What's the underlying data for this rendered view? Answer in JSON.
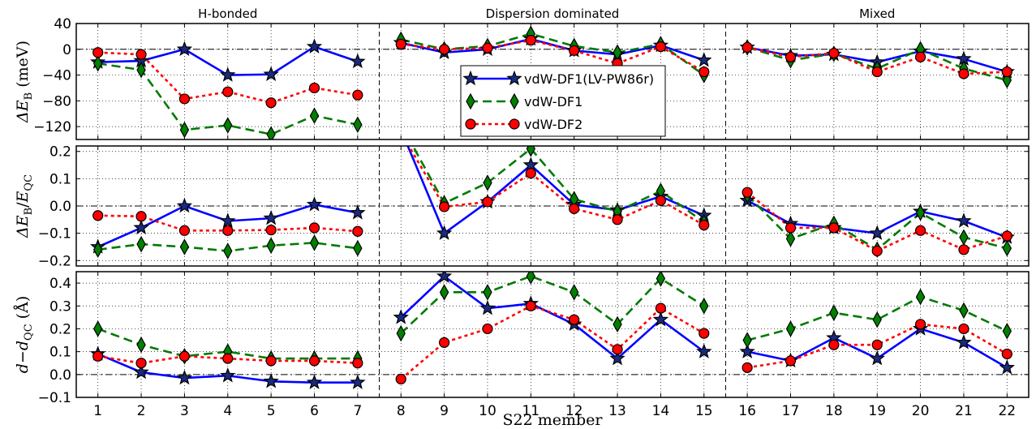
{
  "chart_data": {
    "type": "line",
    "xlabel": "S22 member",
    "x": [
      1,
      2,
      3,
      4,
      5,
      6,
      7,
      8,
      9,
      10,
      11,
      12,
      13,
      14,
      15,
      16,
      17,
      18,
      19,
      20,
      21,
      22
    ],
    "x_ticks": [
      "1",
      "2",
      "3",
      "4",
      "5",
      "6",
      "7",
      "8",
      "9",
      "10",
      "11",
      "12",
      "13",
      "14",
      "15",
      "16",
      "17",
      "18",
      "19",
      "20",
      "21",
      "22"
    ],
    "groups": [
      {
        "label": "H-bonded"
      },
      {
        "label": "Dispersion dominated"
      },
      {
        "label": "Mixed"
      }
    ],
    "series_style": [
      {
        "name": "vdW-DF1(LV-PW86r)",
        "color": "#0000ff",
        "marker": "star",
        "marker_fill": "#1a2a80",
        "dash": "solid"
      },
      {
        "name": "vdW-DF1",
        "color": "#007a00",
        "marker": "diamond",
        "marker_fill": "#008000",
        "dash": "dashed"
      },
      {
        "name": "vdW-DF2",
        "color": "#ff0000",
        "marker": "circle",
        "marker_fill": "#ff0000",
        "dash": "dotted"
      }
    ],
    "panels": [
      {
        "ylabel_main": "ΔE",
        "ylabel_sub": "B",
        "ylabel_unit": " (meV)",
        "ylim": [
          -140,
          40
        ],
        "yticks": [
          40,
          0,
          -40,
          -80,
          -120
        ],
        "ytick_labels": [
          "40",
          "0",
          "−40",
          "−80",
          "−120"
        ],
        "series": [
          {
            "name": "vdW-DF1(LV-PW86r)",
            "values": [
              -20,
              -18,
              0,
              -40,
              -39,
              4,
              -19,
              10,
              -5,
              0,
              16,
              -2,
              -8,
              6,
              -17,
              3,
              -10,
              -8,
              -20,
              -3,
              -15,
              -35
            ]
          },
          {
            "name": "vdW-DF1",
            "values": [
              -22,
              -32,
              -125,
              -118,
              -132,
              -103,
              -117,
              15,
              0,
              5,
              24,
              5,
              -5,
              8,
              -40,
              3,
              -17,
              -7,
              -30,
              0,
              -30,
              -48
            ]
          },
          {
            "name": "vdW-DF2",
            "values": [
              -5,
              -8,
              -77,
              -66,
              -83,
              -60,
              -71,
              8,
              0,
              2,
              14,
              -2,
              -22,
              4,
              -35,
              3,
              -12,
              -6,
              -35,
              -12,
              -38,
              -35
            ]
          }
        ]
      },
      {
        "ylabel_main": "ΔE",
        "ylabel_sub": "B",
        "ylabel_den": "E",
        "ylabel_den_sub": "QC",
        "ylim": [
          -0.22,
          0.22
        ],
        "yticks": [
          0.2,
          0.1,
          0.0,
          -0.1,
          -0.2
        ],
        "ytick_labels": [
          "0.2",
          "0.1",
          "0.0",
          "−0.1",
          "−0.2"
        ],
        "series": [
          {
            "name": "vdW-DF1(LV-PW86r)",
            "values": [
              -0.15,
              -0.08,
              0.0,
              -0.055,
              -0.045,
              0.005,
              -0.025,
              0.28,
              -0.1,
              0.015,
              0.15,
              0.005,
              -0.015,
              0.035,
              -0.035,
              0.02,
              -0.065,
              -0.08,
              -0.1,
              -0.02,
              -0.055,
              -0.115
            ]
          },
          {
            "name": "vdW-DF1",
            "values": [
              -0.16,
              -0.14,
              -0.15,
              -0.165,
              -0.145,
              -0.135,
              -0.155,
              0.3,
              0.01,
              0.085,
              0.21,
              0.025,
              -0.02,
              0.055,
              -0.06,
              0.04,
              -0.12,
              -0.065,
              -0.16,
              -0.025,
              -0.115,
              -0.155
            ]
          },
          {
            "name": "vdW-DF2",
            "values": [
              -0.035,
              -0.038,
              -0.09,
              -0.09,
              -0.088,
              -0.08,
              -0.093,
              0.27,
              -0.003,
              0.015,
              0.12,
              -0.01,
              -0.05,
              0.02,
              -0.07,
              0.05,
              -0.08,
              -0.08,
              -0.165,
              -0.09,
              -0.16,
              -0.11
            ]
          }
        ]
      },
      {
        "ylabel_main": "d",
        "ylabel_mid": "−",
        "ylabel_sub": "QC",
        "ylabel_unit": " (Å)",
        "ylim": [
          -0.1,
          0.45
        ],
        "yticks": [
          0.4,
          0.3,
          0.2,
          0.1,
          0.0,
          -0.1
        ],
        "ytick_labels": [
          "0.4",
          "0.3",
          "0.2",
          "0.1",
          "0.0",
          "−0.1"
        ],
        "series": [
          {
            "name": "vdW-DF1(LV-PW86r)",
            "values": [
              0.09,
              0.01,
              -0.015,
              -0.005,
              -0.03,
              -0.035,
              -0.035,
              0.25,
              0.43,
              0.29,
              0.31,
              0.22,
              0.07,
              0.24,
              0.1,
              0.1,
              0.06,
              0.16,
              0.07,
              0.2,
              0.14,
              0.03
            ]
          },
          {
            "name": "vdW-DF1",
            "values": [
              0.2,
              0.13,
              0.08,
              0.1,
              0.07,
              0.07,
              0.07,
              0.18,
              0.36,
              0.36,
              0.43,
              0.36,
              0.22,
              0.42,
              0.3,
              0.15,
              0.2,
              0.27,
              0.24,
              0.34,
              0.28,
              0.19
            ]
          },
          {
            "name": "vdW-DF2",
            "values": [
              0.08,
              0.05,
              0.08,
              0.07,
              0.06,
              0.06,
              0.05,
              -0.02,
              0.14,
              0.2,
              0.3,
              0.24,
              0.11,
              0.29,
              0.18,
              0.03,
              0.06,
              0.13,
              0.13,
              0.22,
              0.2,
              0.09
            ]
          }
        ]
      }
    ],
    "legend": {
      "entries": [
        "vdW-DF1(LV-PW86r)",
        "vdW-DF1",
        "vdW-DF2"
      ],
      "placement": "top-panel-center"
    },
    "grid": true
  }
}
